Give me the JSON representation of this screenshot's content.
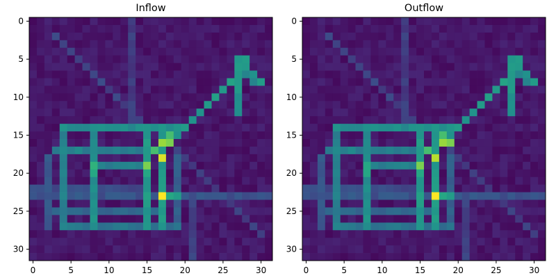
{
  "chart_data": [
    {
      "type": "heatmap",
      "title": "Inflow",
      "colormap": "viridis",
      "grid_size": [
        32,
        32
      ],
      "xlim": [
        -0.5,
        31.5
      ],
      "ylim": [
        31.5,
        -0.5
      ],
      "x_ticks": [
        0,
        5,
        10,
        15,
        20,
        25,
        30
      ],
      "y_ticks": [
        0,
        5,
        10,
        15,
        20,
        25,
        30
      ],
      "value_range": [
        0,
        1
      ],
      "cells": [
        {
          "row": 23,
          "col": 17,
          "value": 1.0
        },
        {
          "row": 18,
          "col": 17,
          "value": 0.95
        },
        {
          "row": 16,
          "col": 17,
          "value": 0.85
        },
        {
          "row": 16,
          "col": 18,
          "value": 0.8
        },
        {
          "row": 19,
          "col": 15,
          "value": 0.8
        },
        {
          "row": 15,
          "col": 18,
          "value": 0.7
        },
        {
          "row": 19,
          "col": 8,
          "value": 0.65
        },
        {
          "row": 20,
          "col": 8,
          "value": 0.6
        },
        {
          "row": 17,
          "col": 16,
          "value": 0.7
        },
        {
          "row": 20,
          "col": 15,
          "value": 0.6
        },
        {
          "row": 23,
          "col": 18,
          "value": 0.6
        },
        {
          "row": 23,
          "col": 19,
          "value": 0.55
        },
        {
          "row": 14,
          "col": 20,
          "value": 0.55
        },
        {
          "row": 6,
          "col": 27,
          "value": 0.55
        },
        {
          "row": 5,
          "col": 28,
          "value": 0.55
        }
      ]
    },
    {
      "type": "heatmap",
      "title": "Outflow",
      "colormap": "viridis",
      "grid_size": [
        32,
        32
      ],
      "xlim": [
        -0.5,
        31.5
      ],
      "ylim": [
        31.5,
        -0.5
      ],
      "x_ticks": [
        0,
        5,
        10,
        15,
        20,
        25,
        30
      ],
      "y_ticks": [
        0,
        5,
        10,
        15,
        20,
        25,
        30
      ],
      "value_range": [
        0,
        1
      ],
      "cells": [
        {
          "row": 23,
          "col": 17,
          "value": 1.0
        },
        {
          "row": 18,
          "col": 17,
          "value": 0.9
        },
        {
          "row": 16,
          "col": 18,
          "value": 0.85
        },
        {
          "row": 16,
          "col": 19,
          "value": 0.8
        },
        {
          "row": 19,
          "col": 15,
          "value": 0.8
        },
        {
          "row": 17,
          "col": 16,
          "value": 0.7
        },
        {
          "row": 15,
          "col": 18,
          "value": 0.7
        },
        {
          "row": 19,
          "col": 8,
          "value": 0.6
        },
        {
          "row": 20,
          "col": 8,
          "value": 0.6
        },
        {
          "row": 20,
          "col": 15,
          "value": 0.6
        },
        {
          "row": 23,
          "col": 18,
          "value": 0.6
        },
        {
          "row": 23,
          "col": 19,
          "value": 0.55
        },
        {
          "row": 14,
          "col": 20,
          "value": 0.55
        },
        {
          "row": 6,
          "col": 27,
          "value": 0.55
        },
        {
          "row": 5,
          "col": 28,
          "value": 0.55
        }
      ]
    }
  ]
}
